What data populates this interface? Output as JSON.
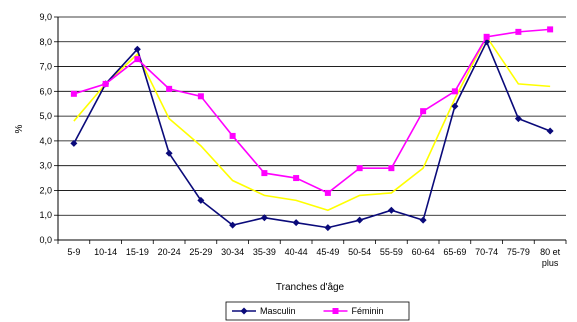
{
  "chart_data": {
    "type": "line",
    "title": "",
    "xlabel": "Tranches d'âge",
    "ylabel": "%",
    "ylim": [
      0,
      9
    ],
    "yticks": [
      "0,0",
      "1,0",
      "2,0",
      "3,0",
      "4,0",
      "5,0",
      "6,0",
      "7,0",
      "8,0",
      "9,0"
    ],
    "categories": [
      "5-9",
      "10-14",
      "15-19",
      "20-24",
      "25-29",
      "30-34",
      "35-39",
      "40-44",
      "45-49",
      "50-54",
      "55-59",
      "60-64",
      "65-69",
      "70-74",
      "75-79",
      "80 et plus"
    ],
    "category_lines": [
      [
        "5-9"
      ],
      [
        "10-14"
      ],
      [
        "15-19"
      ],
      [
        "20-24"
      ],
      [
        "25-29"
      ],
      [
        "30-34"
      ],
      [
        "35-39"
      ],
      [
        "40-44"
      ],
      [
        "45-49"
      ],
      [
        "50-54"
      ],
      [
        "55-59"
      ],
      [
        "60-64"
      ],
      [
        "65-69"
      ],
      [
        "70-74"
      ],
      [
        "75-79"
      ],
      [
        "80 et",
        "plus"
      ]
    ],
    "grid": "horizontal",
    "legend_position": "bottom",
    "series": [
      {
        "name": "Masculin",
        "color": "#0a0a7a",
        "marker": "diamond",
        "in_legend": true,
        "values": [
          3.9,
          6.3,
          7.7,
          3.5,
          1.6,
          0.6,
          0.9,
          0.7,
          0.5,
          0.8,
          1.2,
          0.8,
          5.4,
          8.0,
          4.9,
          4.4
        ]
      },
      {
        "name": "Féminin",
        "color": "#ff00ff",
        "marker": "square",
        "in_legend": true,
        "values": [
          5.9,
          6.3,
          7.3,
          6.1,
          5.8,
          4.2,
          2.7,
          2.5,
          1.9,
          2.9,
          2.9,
          5.2,
          6.0,
          8.2,
          8.4,
          8.5
        ]
      },
      {
        "name": "",
        "color": "#ffff00",
        "marker": "none",
        "in_legend": false,
        "values": [
          4.8,
          6.3,
          7.5,
          4.9,
          3.8,
          2.4,
          1.8,
          1.6,
          1.2,
          1.8,
          1.9,
          2.9,
          5.7,
          8.2,
          6.3,
          6.2
        ]
      }
    ]
  }
}
